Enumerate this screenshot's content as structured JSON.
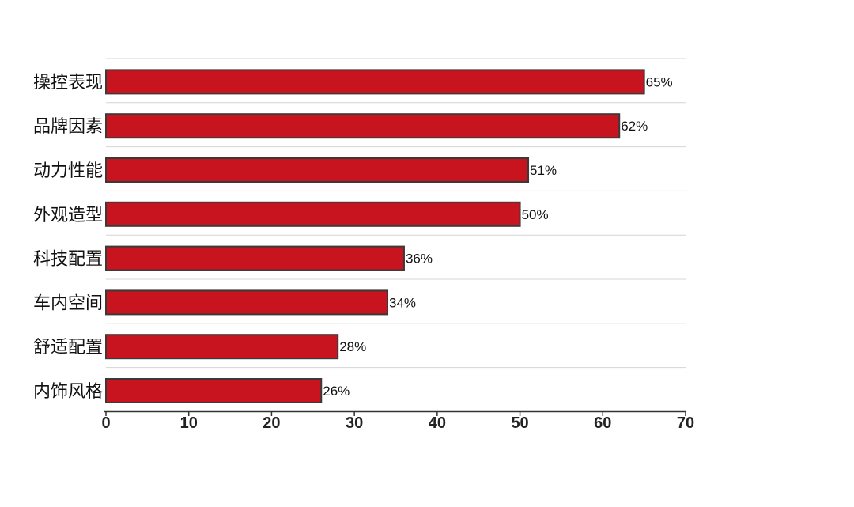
{
  "chart_data": {
    "type": "bar",
    "orientation": "horizontal",
    "categories": [
      "操控表现",
      "品牌因素",
      "动力性能",
      "外观造型",
      "科技配置",
      "车内空间",
      "舒适配置",
      "内饰风格"
    ],
    "values": [
      65,
      62,
      51,
      50,
      36,
      34,
      28,
      26
    ],
    "value_labels": [
      "65%",
      "62%",
      "51%",
      "50%",
      "36%",
      "34%",
      "28%",
      "26%"
    ],
    "xlim": [
      0,
      70
    ],
    "xticks": [
      "0",
      "10",
      "20",
      "30",
      "40",
      "50",
      "60",
      "70"
    ],
    "grid": "horizontal",
    "title": "",
    "xlabel": "",
    "ylabel": ""
  },
  "colors": {
    "bar_fill": "#C8141F",
    "bar_stroke": "#3a3a3a",
    "grid": "#d4d4d4",
    "axis": "#333333"
  }
}
